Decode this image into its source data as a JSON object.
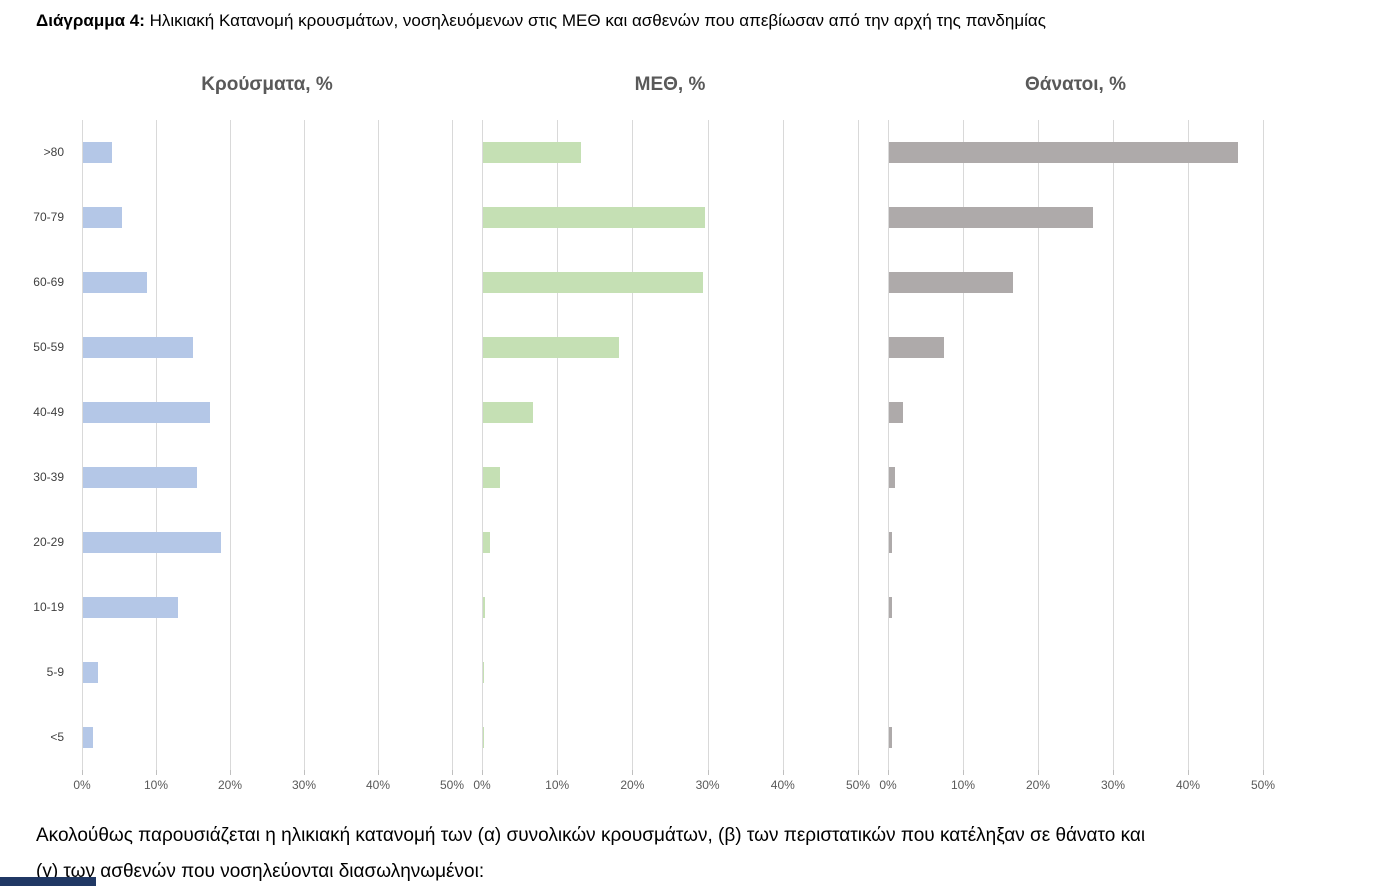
{
  "page": {
    "title_prefix": "Διάγραμμα 4:",
    "title_rest": " Ηλικιακή Κατανομή κρουσμάτων, νοσηλευόμενων στις ΜΕΘ και ασθενών που απεβίωσαν από την αρχή της πανδημίας",
    "footer_text": "Ακολούθως παρουσιάζεται η ηλικιακή κατανομή των (α) συνολικών κρουσμάτων, (β) των περιστατικών που κατέληξαν σε θάνατο και (γ) των ασθενών που νοσηλεύονται διασωληνωμένοι:",
    "footer_band_color": "#203864"
  },
  "chart_data": {
    "type": "bar",
    "orientation": "horizontal",
    "categories": [
      ">80",
      "70-79",
      "60-69",
      "50-59",
      "40-49",
      "30-39",
      "20-29",
      "10-19",
      "5-9",
      "<5"
    ],
    "series": [
      {
        "name": "Κρούσματα, %",
        "color": "#b4c7e7",
        "values": [
          3.9,
          5.3,
          8.7,
          14.8,
          17.1,
          15.4,
          18.6,
          12.9,
          2.0,
          1.4
        ]
      },
      {
        "name": "ΜΕΘ, %",
        "color": "#c5e0b4",
        "values": [
          13.0,
          29.5,
          29.3,
          18.1,
          6.7,
          2.2,
          0.9,
          0.3,
          0.1,
          0.1
        ]
      },
      {
        "name": "Θάνατοι, %",
        "color": "#aeaaaa",
        "values": [
          46.5,
          27.2,
          16.5,
          7.3,
          1.8,
          0.8,
          0.4,
          0.4,
          0.0,
          0.4
        ]
      }
    ],
    "x_ticks": [
      "0%",
      "10%",
      "20%",
      "30%",
      "40%",
      "50%"
    ],
    "xlim": [
      0,
      50
    ],
    "grid": true,
    "gridline_color": "#d9d9d9",
    "legend": "none",
    "title": "",
    "xlabel": "",
    "ylabel": ""
  }
}
